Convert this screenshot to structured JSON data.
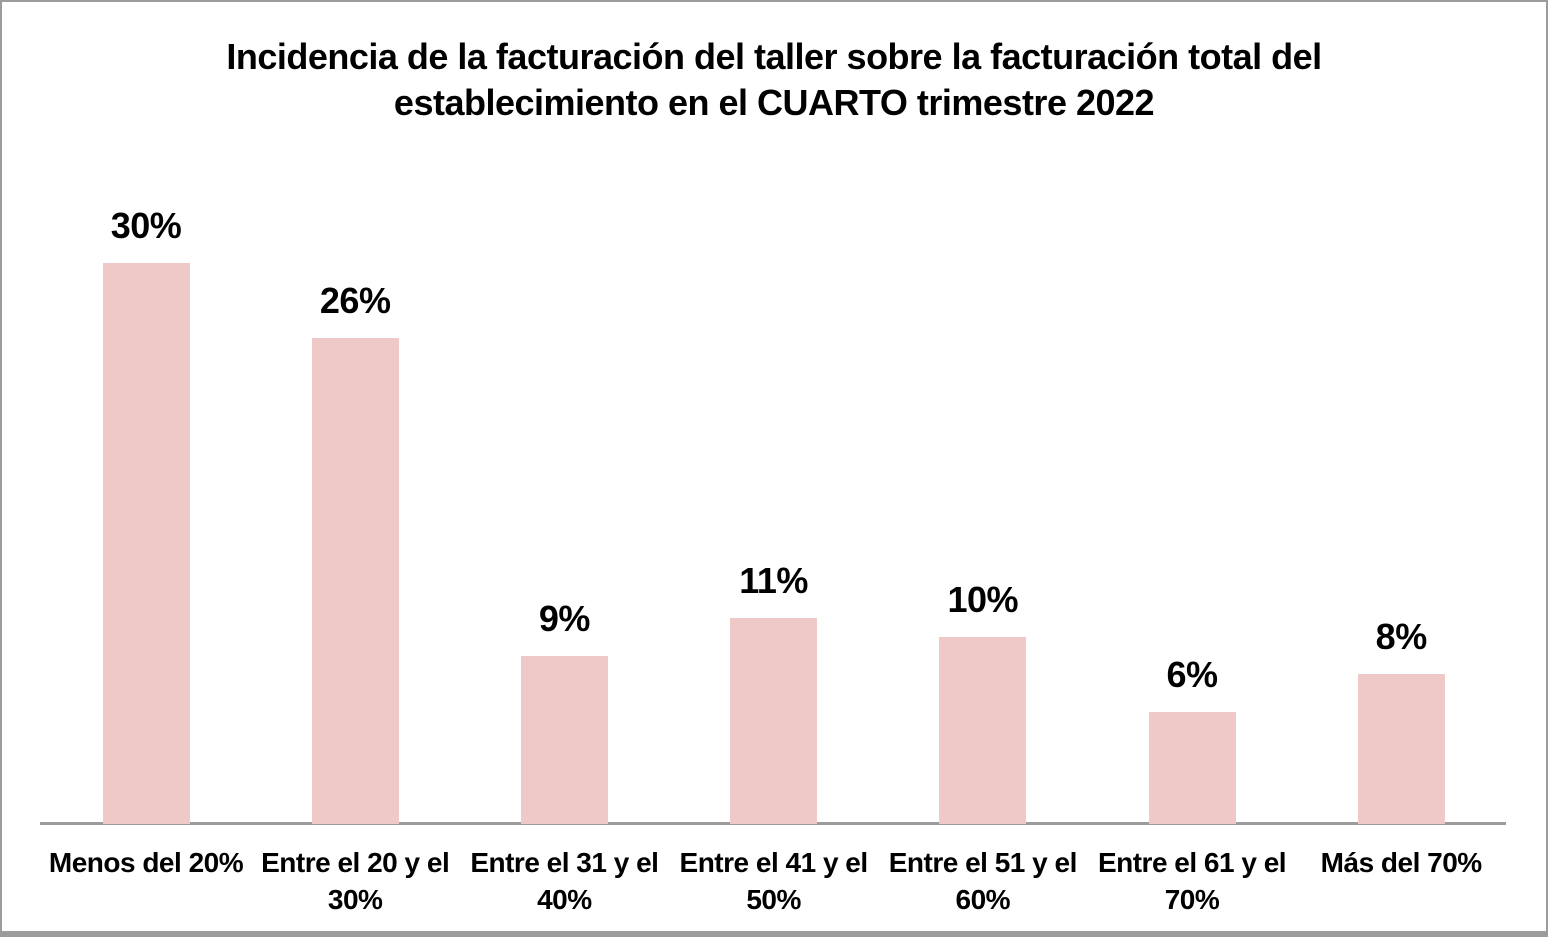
{
  "page": {
    "background": "#ffffff",
    "frame_border_color": "#9c9c9c"
  },
  "chart_data": {
    "type": "bar",
    "title": "Incidencia de la facturación del taller sobre la facturación total del establecimiento en el CUARTO trimestre 2022",
    "title_display": "Incidencia de la facturación del taller sobre la facturación total del\nestablecimiento en el CUARTO trimestre 2022",
    "categories": [
      "Menos del 20%",
      "Entre el 20 y el 30%",
      "Entre el 31 y el 40%",
      "Entre el 41 y el 50%",
      "Entre el 51 y el 60%",
      "Entre el 61 y el 70%",
      "Más del 70%"
    ],
    "categories_display": [
      "Menos del 20%",
      "Entre el 20 y el\n30%",
      "Entre el 31 y el\n40%",
      "Entre el 41 y el\n50%",
      "Entre el 51 y el\n60%",
      "Entre el 61 y el\n70%",
      "Más del 70%"
    ],
    "values": [
      30,
      26,
      9,
      11,
      10,
      6,
      8
    ],
    "data_labels": [
      "30%",
      "26%",
      "9%",
      "11%",
      "10%",
      "6%",
      "8%"
    ],
    "xlabel": "",
    "ylabel": "",
    "ylim": [
      0,
      35
    ],
    "grid": false,
    "legend_position": "none",
    "bar_color": "#EFC8C8",
    "axis_line_color": "#9C9C9C",
    "text_color": "#000000"
  }
}
